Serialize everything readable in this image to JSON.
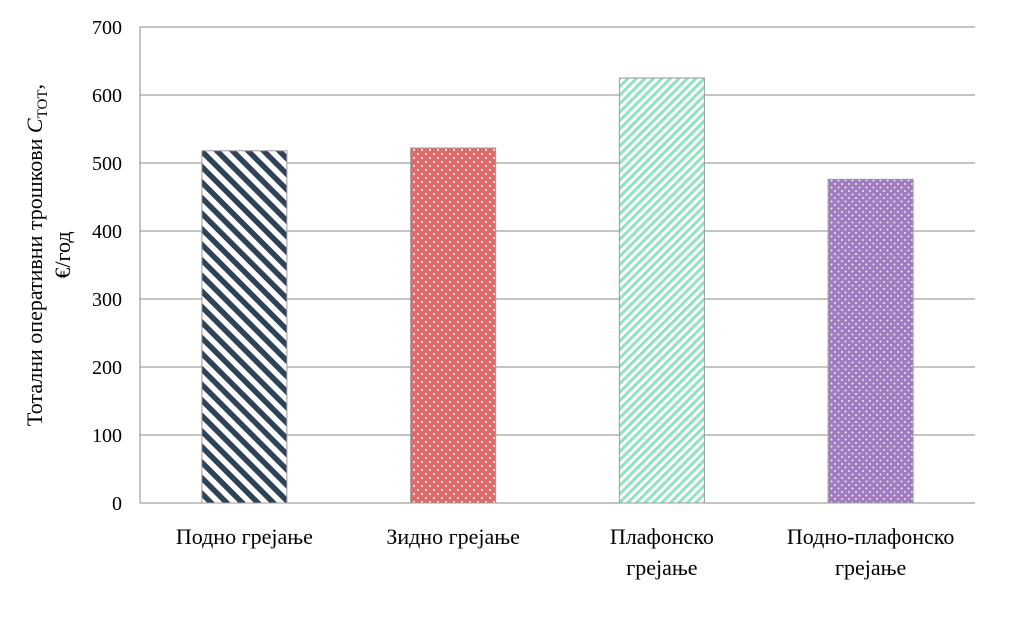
{
  "chart_data": {
    "type": "bar",
    "categories": [
      [
        "Подно грејање"
      ],
      [
        "Зидно грејање"
      ],
      [
        "Плафонско",
        "грејање"
      ],
      [
        "Подно-плафонско",
        "грејање"
      ]
    ],
    "values": [
      518,
      522,
      625,
      476
    ],
    "ylabel": {
      "line1_prefix": "Тотални оперативни трошкови ",
      "symbol": "C",
      "subscript": "ТОТ",
      "line1_suffix": ",",
      "line2": "€/год"
    },
    "ylim": [
      0,
      700
    ],
    "yticks": [
      "0",
      "100",
      "200",
      "300",
      "400",
      "500",
      "600",
      "700"
    ],
    "grid": true,
    "bar_styles": [
      {
        "pattern": "diagonal-stripes",
        "color": "#2e4258",
        "background": "#ffffff"
      },
      {
        "pattern": "dots",
        "color": "#e06a6a",
        "dot": "#ffffff"
      },
      {
        "pattern": "diagonal-stripes-fine",
        "color": "#8fe3bf",
        "background": "#ffffff"
      },
      {
        "pattern": "dots",
        "color": "#a07cc0",
        "dot": "#ffffff"
      }
    ]
  }
}
